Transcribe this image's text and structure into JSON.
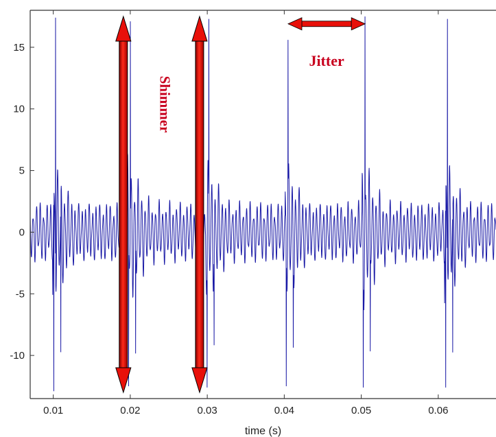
{
  "chart_data": {
    "type": "line",
    "title": "",
    "xlabel": "time (s)",
    "ylabel": "",
    "xlim": [
      0.007,
      0.0675
    ],
    "ylim": [
      -13.5,
      18
    ],
    "xticks": [
      0.01,
      0.02,
      0.03,
      0.04,
      0.05,
      0.06
    ],
    "xtick_labels": [
      "0.01",
      "0.02",
      "0.03",
      "0.04",
      "0.05",
      "0.06"
    ],
    "yticks": [
      15,
      10,
      5,
      0,
      -5,
      -10
    ],
    "ytick_labels": [
      "15",
      "10",
      "5",
      "0",
      "-5",
      "-10"
    ],
    "grid": false,
    "line_color": "#1a1aa6",
    "annotation_color": "#e01010",
    "series": [
      {
        "pulse_times": [
          0.0103,
          0.02,
          0.0302,
          0.0405,
          0.0505,
          0.0612
        ],
        "peak_values": [
          17.4,
          17.1,
          17.3,
          15.6,
          17.5,
          17.3
        ],
        "trough_values": [
          -12.9,
          -12.5,
          -12.6,
          -12.5,
          -12.6,
          -12.6
        ],
        "carrier_frequency_hz": 2200,
        "background_amplitude": 2.2,
        "burst_amplitude": 5.2
      }
    ],
    "annotations": [
      {
        "text": "Shimmer",
        "type": "double-arrow-vertical",
        "x": [
          0.0191,
          0.029
        ],
        "y": [
          -13,
          17.5
        ]
      },
      {
        "text": "Jitter",
        "type": "double-arrow-horizontal",
        "x": [
          0.0405,
          0.0505
        ],
        "y": 16.9
      }
    ]
  }
}
